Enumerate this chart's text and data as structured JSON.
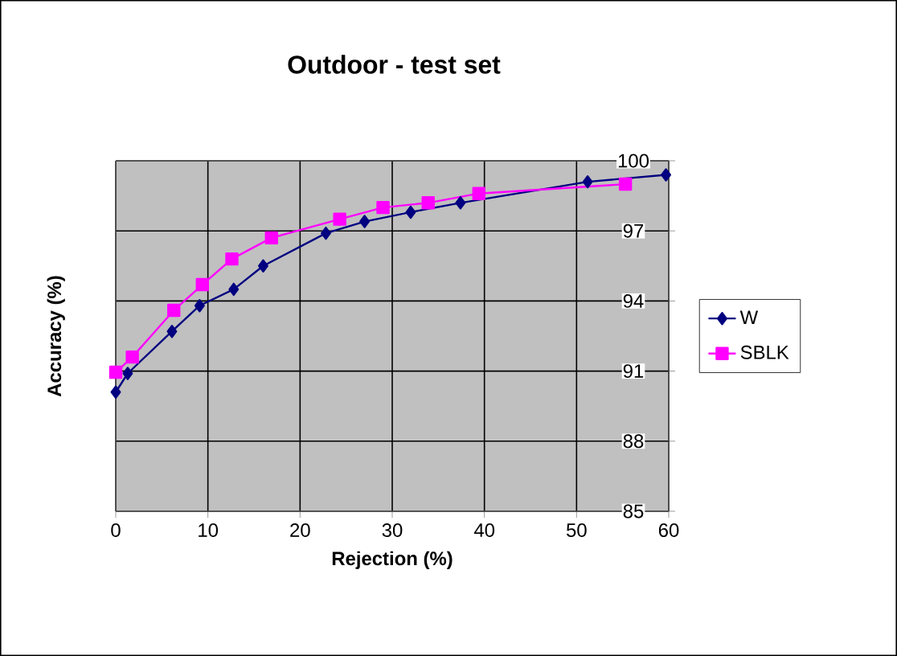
{
  "chart_data": {
    "type": "line",
    "title": "Outdoor - test set",
    "xlabel": "Rejection (%)",
    "ylabel": "Accuracy (%)",
    "xlim": [
      0,
      60
    ],
    "xticks": [
      0,
      10,
      20,
      30,
      40,
      50,
      60
    ],
    "ylim": [
      85,
      100
    ],
    "yticks": [
      85,
      88,
      91,
      94,
      97,
      100
    ],
    "grid": true,
    "legend": "right",
    "series": [
      {
        "name": "W",
        "color": "#000080",
        "marker": "diamond",
        "x": [
          0,
          1.3,
          6.1,
          9.1,
          12.8,
          16.0,
          22.8,
          27.0,
          32.0,
          37.4,
          51.2,
          59.7
        ],
        "values": [
          90.1,
          90.9,
          92.7,
          93.8,
          94.5,
          95.5,
          96.9,
          97.4,
          97.8,
          98.2,
          99.1,
          99.4
        ]
      },
      {
        "name": "SBLK",
        "color": "#ff00ff",
        "marker": "square",
        "x": [
          0,
          1.8,
          6.3,
          9.4,
          12.6,
          16.9,
          24.3,
          29.0,
          33.9,
          39.4,
          55.3
        ],
        "values": [
          90.95,
          91.6,
          93.6,
          94.7,
          95.8,
          96.7,
          97.5,
          98.0,
          98.2,
          98.6,
          99.0
        ]
      }
    ]
  }
}
